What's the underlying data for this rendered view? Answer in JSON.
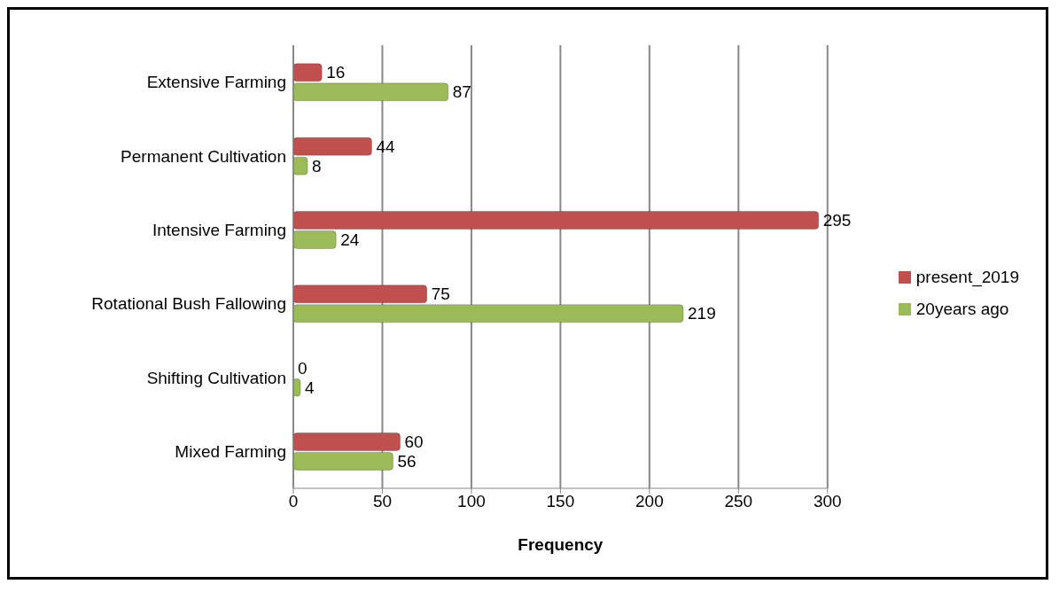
{
  "chart_data": {
    "type": "bar",
    "orientation": "horizontal",
    "xlabel": "Frequency",
    "categories": [
      "Extensive Farming",
      "Permanent Cultivation",
      "Intensive Farming",
      "Rotational Bush Fallowing",
      "Shifting Cultivation",
      "Mixed Farming"
    ],
    "series": [
      {
        "name": "present_2019",
        "color": "#c0504d",
        "values": [
          16,
          44,
          295,
          75,
          0,
          60
        ]
      },
      {
        "name": "20years ago",
        "color": "#9bbb59",
        "values": [
          87,
          8,
          24,
          219,
          4,
          56
        ]
      }
    ],
    "xlim": [
      0,
      300
    ],
    "xticks": [
      0,
      50,
      100,
      150,
      200,
      250,
      300
    ],
    "grid": "x",
    "legend": "right",
    "data_labels": true
  }
}
